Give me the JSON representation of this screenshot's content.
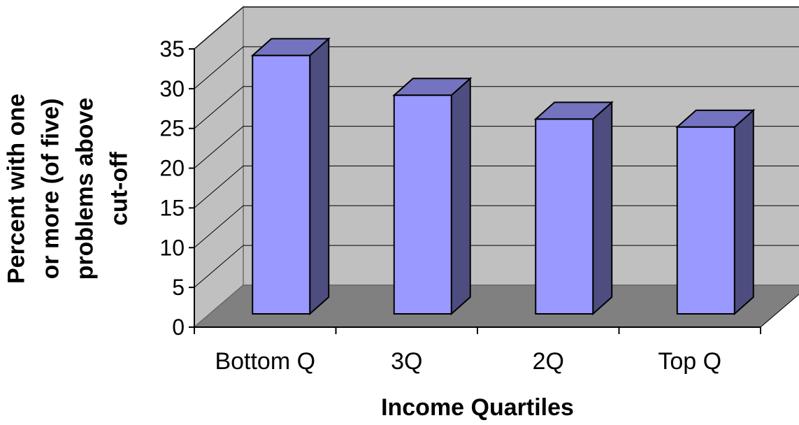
{
  "chart_data": {
    "type": "bar",
    "categories": [
      "Bottom Q",
      "3Q",
      "2Q",
      "Top Q"
    ],
    "values": [
      32.5,
      27.5,
      24.5,
      23.5
    ],
    "xlabel": "Income Quartiles",
    "ylabel": [
      "Percent with one",
      "or more (of five)",
      "problems above",
      "cut-off"
    ],
    "ylim": [
      0,
      35
    ],
    "yticks": [
      0,
      5,
      10,
      15,
      20,
      25,
      30,
      35
    ],
    "grid": true,
    "style": "3d-column",
    "colors": {
      "bar_front": "#9999ff",
      "bar_side": "#4d4d80",
      "bar_top": "#7373bf",
      "back_wall": "#c0c0c0",
      "side_wall": "#c0c0c0",
      "floor": "#808080"
    }
  }
}
